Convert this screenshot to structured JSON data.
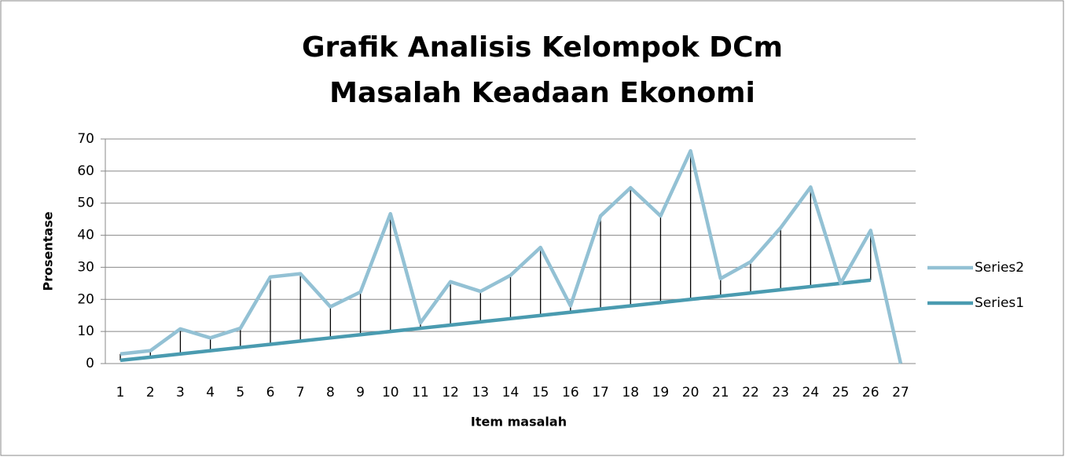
{
  "chart_data": {
    "type": "line",
    "title": "Grafik Analisis Kelompok DCm",
    "subtitle": "Masalah Keadaan Ekonomi",
    "x_label": "Item masalah",
    "y_label": "Prosentase",
    "categories": [
      1,
      2,
      3,
      4,
      5,
      6,
      7,
      8,
      9,
      10,
      11,
      12,
      13,
      14,
      15,
      16,
      17,
      18,
      19,
      20,
      21,
      22,
      23,
      24,
      25,
      26,
      27
    ],
    "series": [
      {
        "name": "Series2",
        "color": "#93c1d4",
        "values": [
          3,
          4,
          10.8,
          8,
          11,
          27,
          28,
          17.7,
          22.3,
          46.7,
          12.7,
          25.5,
          22.5,
          27.5,
          36.2,
          18,
          46,
          54.8,
          46,
          66.3,
          26.5,
          31.7,
          42.3,
          55,
          25,
          41.5,
          0
        ]
      },
      {
        "name": "Series1",
        "color": "#4a9bb0",
        "values": [
          1,
          2,
          3,
          4,
          5,
          6,
          7,
          8,
          9,
          10,
          11,
          12,
          13,
          14,
          15,
          16,
          17,
          18,
          19,
          20,
          21,
          22,
          23,
          24,
          25,
          26,
          null
        ]
      }
    ],
    "ylim": [
      0,
      70
    ],
    "yticks": [
      0,
      10,
      20,
      30,
      40,
      50,
      60,
      70
    ],
    "grid": true,
    "drop_lines": true,
    "legend": "right"
  }
}
